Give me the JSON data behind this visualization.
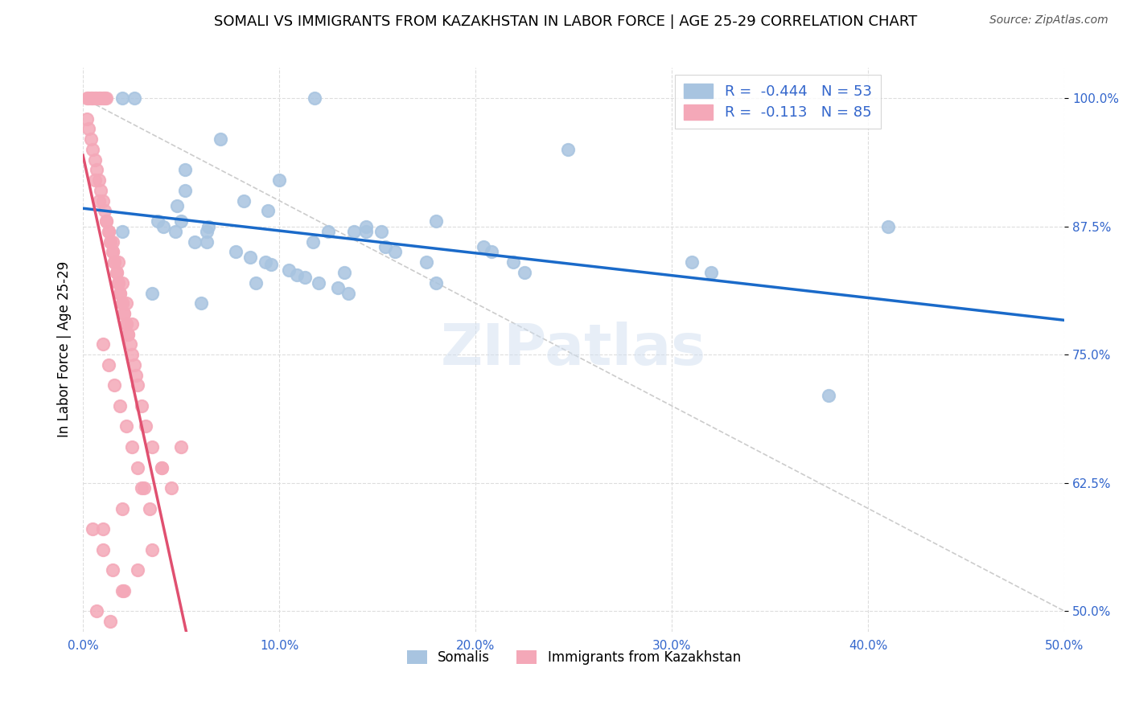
{
  "title": "SOMALI VS IMMIGRANTS FROM KAZAKHSTAN IN LABOR FORCE | AGE 25-29 CORRELATION CHART",
  "source": "Source: ZipAtlas.com",
  "xlabel": "",
  "ylabel": "In Labor Force | Age 25-29",
  "xlim": [
    0.0,
    0.5
  ],
  "ylim": [
    0.48,
    1.02
  ],
  "yticks": [
    0.5,
    0.625,
    0.75,
    0.875,
    1.0
  ],
  "ytick_labels": [
    "50.0%",
    "62.5%",
    "75.0%",
    "87.5%",
    "100.0%"
  ],
  "xticks": [
    0.0,
    0.1,
    0.2,
    0.3,
    0.4,
    0.5
  ],
  "xtick_labels": [
    "0.0%",
    "10.0%",
    "20.0%",
    "30.0%",
    "40.0%",
    "50.0%"
  ],
  "blue_R": -0.444,
  "blue_N": 53,
  "pink_R": -0.113,
  "pink_N": 85,
  "blue_color": "#a8c4e0",
  "pink_color": "#f4a8b8",
  "blue_line_color": "#1a6ac9",
  "pink_line_color": "#e05070",
  "watermark": "ZIPatlas",
  "title_fontsize": 13,
  "axis_color": "#3366cc",
  "blue_scatter_x": [
    0.026,
    0.02,
    0.118,
    0.247,
    0.07,
    0.052,
    0.052,
    0.1,
    0.125,
    0.082,
    0.094,
    0.138,
    0.144,
    0.117,
    0.152,
    0.063,
    0.18,
    0.144,
    0.154,
    0.159,
    0.175,
    0.204,
    0.208,
    0.219,
    0.133,
    0.088,
    0.048,
    0.047,
    0.05,
    0.063,
    0.057,
    0.038,
    0.041,
    0.02,
    0.064,
    0.18,
    0.225,
    0.078,
    0.085,
    0.093,
    0.096,
    0.105,
    0.109,
    0.113,
    0.12,
    0.13,
    0.135,
    0.41,
    0.035,
    0.06,
    0.31,
    0.32,
    0.38
  ],
  "blue_scatter_y": [
    1.0,
    1.0,
    1.0,
    0.95,
    0.96,
    0.93,
    0.91,
    0.92,
    0.87,
    0.9,
    0.89,
    0.87,
    0.87,
    0.86,
    0.87,
    0.86,
    0.88,
    0.875,
    0.855,
    0.85,
    0.84,
    0.855,
    0.85,
    0.84,
    0.83,
    0.82,
    0.895,
    0.87,
    0.88,
    0.87,
    0.86,
    0.88,
    0.875,
    0.87,
    0.875,
    0.82,
    0.83,
    0.85,
    0.845,
    0.84,
    0.838,
    0.832,
    0.828,
    0.825,
    0.82,
    0.815,
    0.81,
    0.875,
    0.81,
    0.8,
    0.84,
    0.83,
    0.71
  ],
  "pink_scatter_x": [
    0.002,
    0.002,
    0.003,
    0.003,
    0.004,
    0.004,
    0.005,
    0.005,
    0.006,
    0.006,
    0.007,
    0.007,
    0.008,
    0.008,
    0.009,
    0.009,
    0.01,
    0.01,
    0.011,
    0.011,
    0.012,
    0.012,
    0.013,
    0.013,
    0.014,
    0.014,
    0.015,
    0.015,
    0.016,
    0.016,
    0.017,
    0.017,
    0.018,
    0.018,
    0.019,
    0.019,
    0.02,
    0.02,
    0.021,
    0.021,
    0.022,
    0.022,
    0.023,
    0.023,
    0.024,
    0.025,
    0.026,
    0.027,
    0.028,
    0.03,
    0.032,
    0.035,
    0.04,
    0.045,
    0.006,
    0.008,
    0.012,
    0.015,
    0.018,
    0.02,
    0.022,
    0.025,
    0.01,
    0.013,
    0.016,
    0.019,
    0.022,
    0.025,
    0.028,
    0.031,
    0.034,
    0.005,
    0.01,
    0.015,
    0.02,
    0.007,
    0.014,
    0.021,
    0.028,
    0.035,
    0.01,
    0.02,
    0.03,
    0.04,
    0.05
  ],
  "pink_scatter_y": [
    1.0,
    0.98,
    1.0,
    0.97,
    1.0,
    0.96,
    1.0,
    0.95,
    1.0,
    0.94,
    1.0,
    0.93,
    1.0,
    0.92,
    1.0,
    0.91,
    1.0,
    0.9,
    1.0,
    0.89,
    1.0,
    0.88,
    0.87,
    0.87,
    0.86,
    0.86,
    0.85,
    0.85,
    0.84,
    0.84,
    0.83,
    0.83,
    0.82,
    0.82,
    0.81,
    0.81,
    0.8,
    0.8,
    0.79,
    0.79,
    0.78,
    0.78,
    0.77,
    0.77,
    0.76,
    0.75,
    0.74,
    0.73,
    0.72,
    0.7,
    0.68,
    0.66,
    0.64,
    0.62,
    0.92,
    0.9,
    0.88,
    0.86,
    0.84,
    0.82,
    0.8,
    0.78,
    0.76,
    0.74,
    0.72,
    0.7,
    0.68,
    0.66,
    0.64,
    0.62,
    0.6,
    0.58,
    0.56,
    0.54,
    0.52,
    0.5,
    0.49,
    0.52,
    0.54,
    0.56,
    0.58,
    0.6,
    0.62,
    0.64,
    0.66
  ]
}
